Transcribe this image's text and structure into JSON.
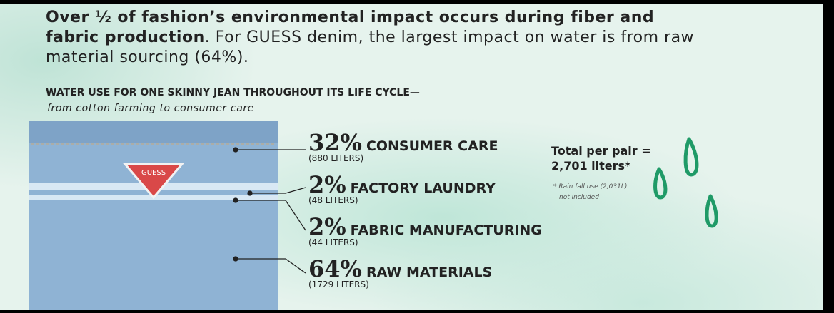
{
  "headline": {
    "bold": "Over ½ of fashion’s environmental impact occurs during fiber and fabric production",
    "regular": ". For GUESS denim, the largest impact on water is from raw material sourcing (64%)."
  },
  "section": {
    "title": "WATER USE FOR ONE SKINNY JEAN THROUGHOUT ITS LIFE CYCLE—",
    "subtitle": "from cotton farming to consumer care"
  },
  "pocket_label": "GUESS",
  "items": [
    {
      "percent": "32%",
      "label": "CONSUMER CARE",
      "liters": "(880 LITERS)"
    },
    {
      "percent": "2%",
      "label": "FACTORY LAUNDRY",
      "liters": "(48 LITERS)"
    },
    {
      "percent": "2%",
      "label": "FABRIC MANUFACTURING",
      "liters": "(44 LITERS)"
    },
    {
      "percent": "64%",
      "label": "RAW MATERIALS",
      "liters": "(1729 LITERS)"
    }
  ],
  "total": {
    "line1": "Total per pair =",
    "line2": "2,701 liters*",
    "note1": "* Rain fall use (2,031L)",
    "note2": "not included"
  }
}
